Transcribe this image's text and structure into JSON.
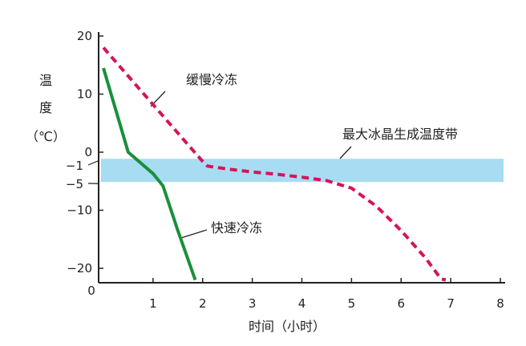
{
  "chart_data": {
    "type": "line",
    "title": "",
    "xlabel": "时间（小时）",
    "ylabel_chars": [
      "温",
      "度",
      "（℃）"
    ],
    "xlim": [
      0,
      8
    ],
    "ylim": [
      -22,
      20
    ],
    "x_ticks": [
      {
        "value": 1,
        "label": "1"
      },
      {
        "value": 2,
        "label": "2"
      },
      {
        "value": 3,
        "label": "3"
      },
      {
        "value": 4,
        "label": "4"
      },
      {
        "value": 5,
        "label": "5"
      },
      {
        "value": 6,
        "label": "6"
      },
      {
        "value": 7,
        "label": "7"
      },
      {
        "value": 8,
        "label": "8"
      }
    ],
    "x_origin_label": "0",
    "y_ticks": [
      {
        "value": 20,
        "label": "20"
      },
      {
        "value": 10,
        "label": "10"
      },
      {
        "value": 0,
        "label": "0"
      },
      {
        "value": -10,
        "label": "−10"
      },
      {
        "value": -20,
        "label": "−20"
      }
    ],
    "y_extra_labels": [
      {
        "value": -1,
        "label": "−1"
      },
      {
        "value": -5,
        "label": "−5"
      }
    ],
    "band": {
      "from": -1,
      "to": -5,
      "label": "最大冰晶生成温度带",
      "color": "#a8dcf2"
    },
    "grid": false,
    "series": [
      {
        "name": "缓慢冷冻",
        "style": "dashed",
        "color": "#d4145a",
        "x": [
          0.0,
          0.5,
          1.0,
          1.5,
          2.0,
          2.1,
          2.5,
          3.0,
          3.5,
          4.0,
          4.5,
          5.0,
          5.5,
          6.0,
          6.5,
          6.8,
          6.9
        ],
        "y": [
          18.0,
          13.1,
          8.2,
          3.3,
          -1.6,
          -2.4,
          -2.9,
          -3.4,
          -3.8,
          -4.3,
          -4.9,
          -6.2,
          -9.3,
          -13.5,
          -18.3,
          -21.8,
          -22.0
        ]
      },
      {
        "name": "快速冷冻",
        "style": "solid",
        "color": "#1a8f3c",
        "x": [
          0.0,
          0.5,
          1.0,
          1.2,
          1.5,
          1.85
        ],
        "y": [
          14.5,
          0.0,
          -3.7,
          -5.8,
          -13.5,
          -22.0
        ]
      }
    ]
  }
}
